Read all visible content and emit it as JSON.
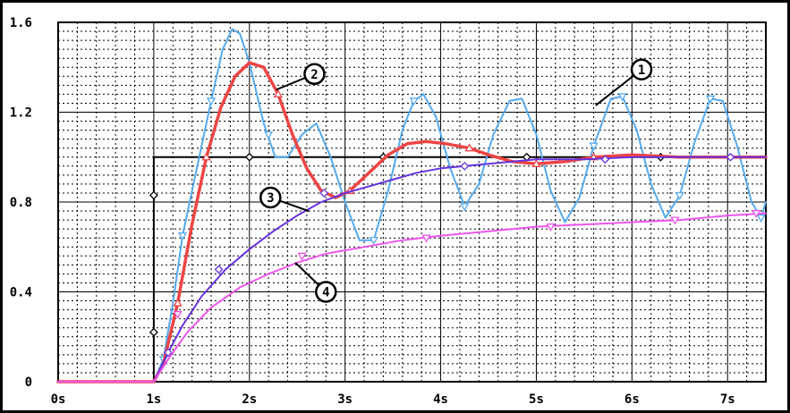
{
  "chart_data": {
    "type": "line",
    "title": "",
    "xlabel": "",
    "ylabel": "",
    "xlim": [
      0,
      7.4
    ],
    "ylim": [
      0,
      1.6
    ],
    "grid": true,
    "x_ticks": [
      {
        "value": 0,
        "label": "0s"
      },
      {
        "value": 1,
        "label": "1s"
      },
      {
        "value": 2,
        "label": "2s"
      },
      {
        "value": 3,
        "label": "3s"
      },
      {
        "value": 4,
        "label": "4s"
      },
      {
        "value": 5,
        "label": "5s"
      },
      {
        "value": 6,
        "label": "6s"
      },
      {
        "value": 7,
        "label": "7s"
      }
    ],
    "y_ticks": [
      {
        "value": 0,
        "label": "0"
      },
      {
        "value": 0.4,
        "label": "0.4"
      },
      {
        "value": 0.8,
        "label": "0.8"
      },
      {
        "value": 1.2,
        "label": "1.2"
      },
      {
        "value": 1.6,
        "label": "1.6"
      }
    ],
    "series": [
      {
        "id": "step",
        "color": "#000000",
        "marker": "diamond",
        "points": [
          [
            0,
            0
          ],
          [
            1,
            0
          ],
          [
            1,
            1
          ],
          [
            7.4,
            1
          ]
        ],
        "marker_points": [
          [
            1,
            0.22
          ],
          [
            1,
            0.83
          ],
          [
            2,
            1
          ],
          [
            3.4,
            1
          ],
          [
            4.9,
            1
          ],
          [
            6.3,
            1
          ]
        ]
      },
      {
        "id": "1",
        "label": "1",
        "color": "#55aaee",
        "marker": "triangle-down",
        "points": [
          [
            0,
            0
          ],
          [
            1,
            0
          ],
          [
            1.1,
            0.1
          ],
          [
            1.2,
            0.35
          ],
          [
            1.3,
            0.65
          ],
          [
            1.45,
            0.95
          ],
          [
            1.6,
            1.25
          ],
          [
            1.72,
            1.48
          ],
          [
            1.82,
            1.57
          ],
          [
            1.9,
            1.55
          ],
          [
            2.0,
            1.42
          ],
          [
            2.15,
            1.15
          ],
          [
            2.27,
            1.0
          ],
          [
            2.4,
            1.0
          ],
          [
            2.55,
            1.1
          ],
          [
            2.7,
            1.15
          ],
          [
            2.85,
            1.0
          ],
          [
            3.0,
            0.8
          ],
          [
            3.15,
            0.63
          ],
          [
            3.3,
            0.63
          ],
          [
            3.45,
            0.85
          ],
          [
            3.6,
            1.12
          ],
          [
            3.72,
            1.25
          ],
          [
            3.82,
            1.28
          ],
          [
            3.95,
            1.18
          ],
          [
            4.1,
            0.95
          ],
          [
            4.25,
            0.78
          ],
          [
            4.4,
            0.88
          ],
          [
            4.55,
            1.1
          ],
          [
            4.72,
            1.25
          ],
          [
            4.85,
            1.26
          ],
          [
            5.0,
            1.1
          ],
          [
            5.15,
            0.85
          ],
          [
            5.3,
            0.71
          ],
          [
            5.45,
            0.82
          ],
          [
            5.6,
            1.05
          ],
          [
            5.78,
            1.26
          ],
          [
            5.9,
            1.27
          ],
          [
            6.05,
            1.12
          ],
          [
            6.2,
            0.88
          ],
          [
            6.35,
            0.73
          ],
          [
            6.5,
            0.83
          ],
          [
            6.65,
            1.06
          ],
          [
            6.82,
            1.26
          ],
          [
            6.95,
            1.25
          ],
          [
            7.1,
            1.05
          ],
          [
            7.25,
            0.8
          ],
          [
            7.35,
            0.73
          ],
          [
            7.4,
            0.8
          ]
        ],
        "marker_points": [
          [
            1.1,
            0.1
          ],
          [
            1.3,
            0.65
          ],
          [
            1.6,
            1.25
          ],
          [
            2.2,
            1.1
          ],
          [
            3.3,
            0.63
          ],
          [
            3.72,
            1.25
          ],
          [
            4.25,
            0.78
          ],
          [
            5.6,
            1.05
          ],
          [
            5.9,
            1.27
          ],
          [
            6.5,
            0.83
          ],
          [
            6.82,
            1.26
          ],
          [
            7.35,
            0.73
          ]
        ]
      },
      {
        "id": "2",
        "label": "2",
        "color": "#ee4444",
        "marker": "triangle-up",
        "points": [
          [
            0,
            0
          ],
          [
            1,
            0
          ],
          [
            1.1,
            0.08
          ],
          [
            1.25,
            0.35
          ],
          [
            1.4,
            0.7
          ],
          [
            1.55,
            1.0
          ],
          [
            1.7,
            1.22
          ],
          [
            1.85,
            1.36
          ],
          [
            2.0,
            1.42
          ],
          [
            2.15,
            1.4
          ],
          [
            2.3,
            1.28
          ],
          [
            2.45,
            1.1
          ],
          [
            2.6,
            0.95
          ],
          [
            2.75,
            0.85
          ],
          [
            2.9,
            0.82
          ],
          [
            3.05,
            0.85
          ],
          [
            3.25,
            0.93
          ],
          [
            3.45,
            1.01
          ],
          [
            3.65,
            1.06
          ],
          [
            3.85,
            1.07
          ],
          [
            4.05,
            1.06
          ],
          [
            4.3,
            1.04
          ],
          [
            4.5,
            1.01
          ],
          [
            4.75,
            0.98
          ],
          [
            5.0,
            0.97
          ],
          [
            5.3,
            0.98
          ],
          [
            5.6,
            1.0
          ],
          [
            6.0,
            1.01
          ],
          [
            6.5,
            1.0
          ],
          [
            7.4,
            1.0
          ]
        ],
        "marker_points": [
          [
            1.25,
            0.35
          ],
          [
            1.55,
            1.0
          ],
          [
            2.3,
            1.28
          ],
          [
            3.05,
            0.85
          ],
          [
            4.3,
            1.04
          ],
          [
            5.0,
            0.97
          ],
          [
            5.6,
            1.0
          ]
        ]
      },
      {
        "id": "3",
        "label": "3",
        "color": "#6633dd",
        "marker": "diamond",
        "points": [
          [
            0,
            0
          ],
          [
            1,
            0
          ],
          [
            1.15,
            0.13
          ],
          [
            1.3,
            0.25
          ],
          [
            1.5,
            0.38
          ],
          [
            1.75,
            0.5
          ],
          [
            2.0,
            0.59
          ],
          [
            2.25,
            0.67
          ],
          [
            2.5,
            0.74
          ],
          [
            2.75,
            0.8
          ],
          [
            3.0,
            0.84
          ],
          [
            3.25,
            0.87
          ],
          [
            3.5,
            0.9
          ],
          [
            3.75,
            0.93
          ],
          [
            4.0,
            0.95
          ],
          [
            4.25,
            0.96
          ],
          [
            4.5,
            0.97
          ],
          [
            4.75,
            0.98
          ],
          [
            5.0,
            0.99
          ],
          [
            5.5,
            0.99
          ],
          [
            6.0,
            1.0
          ],
          [
            7.4,
            1.0
          ]
        ],
        "marker_points": [
          [
            1.15,
            0.13
          ],
          [
            1.68,
            0.5
          ],
          [
            2.78,
            0.84
          ],
          [
            4.25,
            0.96
          ],
          [
            5.72,
            0.99
          ],
          [
            7.03,
            1.0
          ]
        ]
      },
      {
        "id": "4",
        "label": "4",
        "color": "#ee55ee",
        "marker": "triangle-down",
        "points": [
          [
            0,
            0
          ],
          [
            1,
            0
          ],
          [
            1.15,
            0.1
          ],
          [
            1.35,
            0.22
          ],
          [
            1.6,
            0.33
          ],
          [
            1.9,
            0.42
          ],
          [
            2.2,
            0.48
          ],
          [
            2.5,
            0.53
          ],
          [
            2.8,
            0.57
          ],
          [
            3.2,
            0.6
          ],
          [
            3.6,
            0.63
          ],
          [
            4.0,
            0.65
          ],
          [
            4.5,
            0.67
          ],
          [
            5.0,
            0.69
          ],
          [
            5.5,
            0.7
          ],
          [
            6.0,
            0.71
          ],
          [
            6.5,
            0.72
          ],
          [
            7.0,
            0.74
          ],
          [
            7.4,
            0.75
          ]
        ],
        "marker_points": [
          [
            1.25,
            0.3
          ],
          [
            2.55,
            0.56
          ],
          [
            3.85,
            0.64
          ],
          [
            5.15,
            0.69
          ],
          [
            6.45,
            0.72
          ],
          [
            7.3,
            0.75
          ]
        ]
      }
    ],
    "callouts": [
      {
        "label": "1",
        "series": "1",
        "at": [
          5.62,
          1.23
        ],
        "badge": [
          6.1,
          1.39
        ]
      },
      {
        "label": "2",
        "series": "2",
        "at": [
          2.28,
          1.3
        ],
        "badge": [
          2.68,
          1.37
        ]
      },
      {
        "label": "3",
        "series": "3",
        "at": [
          2.62,
          0.76
        ],
        "badge": [
          2.22,
          0.82
        ]
      },
      {
        "label": "4",
        "series": "4",
        "at": [
          2.48,
          0.53
        ],
        "badge": [
          2.8,
          0.4
        ]
      }
    ]
  }
}
